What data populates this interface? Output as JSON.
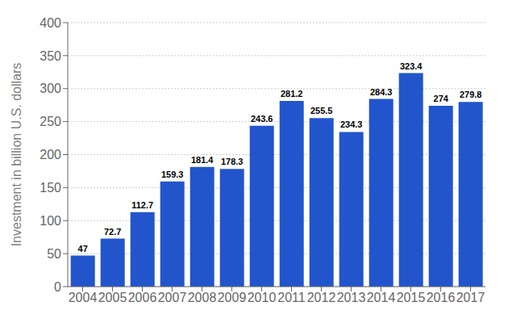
{
  "chart_data": {
    "type": "bar",
    "categories": [
      "2004",
      "2005",
      "2006",
      "2007",
      "2008",
      "2009",
      "2010",
      "2011",
      "2012",
      "2013",
      "2014",
      "2015",
      "2016",
      "2017"
    ],
    "values": [
      47,
      72.7,
      112.7,
      159.3,
      181.4,
      178.3,
      243.6,
      281.2,
      255.5,
      234.3,
      284.3,
      323.4,
      274,
      279.8
    ],
    "color": "#2255cc",
    "ylabel": "Investment in billion U.S. dollars",
    "ylim": [
      0,
      400
    ],
    "yticks": [
      0,
      50,
      100,
      150,
      200,
      250,
      300,
      350,
      400
    ],
    "grid": true,
    "data_labels": true
  }
}
